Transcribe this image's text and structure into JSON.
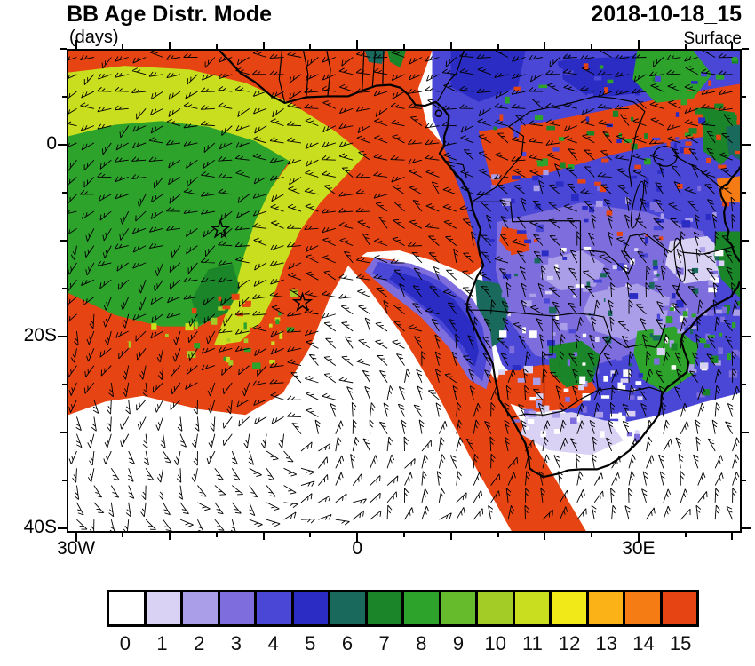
{
  "header": {
    "title": "BB Age Distr. Mode",
    "units": "(days)",
    "datetime": "2018-10-18_15",
    "level": "Surface"
  },
  "axes": {
    "x_ticks": [
      {
        "lon": -30,
        "label": "30W"
      },
      {
        "lon": 0,
        "label": "0"
      },
      {
        "lon": 30,
        "label": "30E"
      }
    ],
    "y_ticks": [
      {
        "lat": 0,
        "label": "0"
      },
      {
        "lat": -20,
        "label": "20S"
      },
      {
        "lat": -40,
        "label": "40S"
      }
    ],
    "lon_range": [
      -31,
      41
    ],
    "lat_range": [
      -40.5,
      10
    ]
  },
  "colorbar": {
    "labels": [
      "0",
      "1",
      "2",
      "3",
      "4",
      "5",
      "6",
      "7",
      "8",
      "9",
      "10",
      "11",
      "12",
      "13",
      "14",
      "15"
    ],
    "colors": [
      "#ffffff",
      "#d9d2f4",
      "#ab9ee9",
      "#7e6edd",
      "#4a47d6",
      "#2b2cc4",
      "#19695c",
      "#1b8629",
      "#2ea32c",
      "#66bb2d",
      "#a3cc26",
      "#c9de1e",
      "#f2ea18",
      "#fbb217",
      "#f57c15",
      "#e74413"
    ]
  },
  "markers": [
    {
      "lon": -14.7,
      "lat": -8.8
    },
    {
      "lon": -5.9,
      "lat": -16.5
    }
  ],
  "chart_data": {
    "type": "heatmap",
    "subtype": "filled-contour geographic map with wind barb overlay",
    "title": "BB Age Distr. Mode",
    "units": "days",
    "datetime": "2018-10-18_15",
    "level": "Surface",
    "domain": {
      "lon": [
        -31,
        41
      ],
      "lat": [
        -40.5,
        10
      ]
    },
    "x_tick_labels": [
      "30W",
      "0",
      "30E"
    ],
    "y_tick_labels": [
      "0",
      "20S",
      "40S"
    ],
    "colorbar_levels": [
      0,
      1,
      2,
      3,
      4,
      5,
      6,
      7,
      8,
      9,
      10,
      11,
      12,
      13,
      14,
      15
    ],
    "colorbar_colors": [
      "#ffffff",
      "#d9d2f4",
      "#ab9ee9",
      "#7e6edd",
      "#4a47d6",
      "#2b2cc4",
      "#19695c",
      "#1b8629",
      "#2ea32c",
      "#66bb2d",
      "#a3cc26",
      "#c9de1e",
      "#f2ea18",
      "#fbb217",
      "#f57c15",
      "#e74413"
    ],
    "overlays": [
      "surface wind barbs everywhere",
      "African coastline and country borders",
      "two open star markers in the Atlantic plume"
    ],
    "star_markers_lonlat": [
      [
        -14.7,
        -8.8
      ],
      [
        -5.9,
        -16.5
      ]
    ],
    "regions": [
      {
        "level_days": "15",
        "region": "dominant orange-red plume over the tropical SE Atlantic and Gulf of Guinea, approx 31W to the Angolan coast, 10N to 25S, with a band extending SE toward 20E, 40S"
      },
      {
        "level_days": "10-11",
        "region": "chartreuse arc along the NW edge of the plume, from 31W near 7N curving south to about 14W, 20S"
      },
      {
        "level_days": "8-9",
        "region": "bright green core inside the arc, approx 31W-7W, 1N-18S"
      },
      {
        "level_days": "0",
        "region": "white (fresh/no BB) air: SW Atlantic south of about 27S, a central wedge from about 0E,12S widening to 40S, coastal Namibia strip, southern South Africa and SE ocean corner"
      },
      {
        "level_days": "4-5",
        "region": "blue over central Africa (Congo basin to East Africa, ~8E-41E, 10N-5S) and a blue tongue offshore Angola from ~2E,12S to 14E,25S"
      },
      {
        "level_days": "1-3",
        "region": "pale purple mottled air over Zambia, Zimbabwe, Botswana and Mozambique (~15E-40E, 6S-24S)"
      },
      {
        "level_days": "6",
        "region": "dark teal patches near the Angola/Namibia coast around 13E, 14S-22S"
      },
      {
        "level_days": "7-8",
        "region": "green patches in the NE corner, along the East African coast and over Zimbabwe/Mozambique"
      },
      {
        "level_days": "14-15",
        "region": "orange band across northern DRC to Kenya (~5N-2S) and an orange blob over Namibia/Botswana (~15E-26E, 24S-28S)"
      }
    ]
  }
}
